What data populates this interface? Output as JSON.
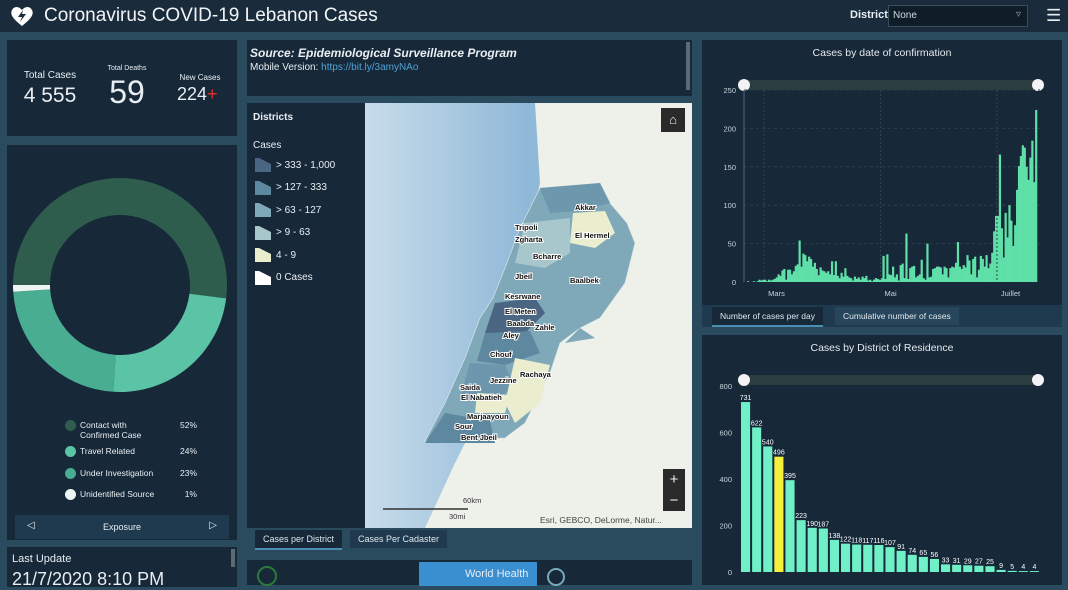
{
  "header": {
    "title": "Coronavirus COVID-19 Lebanon Cases",
    "district_label": "District",
    "district_value": "None",
    "icon": "heart-bolt-icon",
    "menu_icon": "hamburger-icon"
  },
  "stats": {
    "total_cases_label": "Total Cases",
    "total_cases": "4 555",
    "total_deaths_label": "Total Deaths",
    "total_deaths": "59",
    "new_cases_label": "New Cases",
    "new_cases": "224",
    "new_cases_mark": "+"
  },
  "exposure": {
    "tab_label": "Exposure",
    "items": [
      {
        "label": "Contact with Confirmed Case",
        "pct": "52%",
        "value": 52,
        "color": "#2e5c4d"
      },
      {
        "label": "Travel Related",
        "pct": "24%",
        "value": 24,
        "color": "#5bc3a6"
      },
      {
        "label": "Under Investigation",
        "pct": "23%",
        "value": 23,
        "color": "#49ad92"
      },
      {
        "label": "Unidentified Source",
        "pct": "1%",
        "value": 1,
        "color": "#eef6f4"
      }
    ]
  },
  "last_update": {
    "label": "Last Update",
    "value": "21/7/2020 8:10 PM"
  },
  "source": {
    "title": "Source: Epidemiological Surveillance Program",
    "mobile_label": "Mobile Version: ",
    "mobile_link": "https://bit.ly/3amyNAo"
  },
  "map": {
    "legend_title": "Districts",
    "legend_subtitle": "Cases",
    "legend": [
      {
        "label": "> 333 - 1,000",
        "color": "#4a6683"
      },
      {
        "label": "> 127 - 333",
        "color": "#5e87a0"
      },
      {
        "label": "> 63 - 127",
        "color": "#7fa9b8"
      },
      {
        "label": "> 9 - 63",
        "color": "#a8c7cc"
      },
      {
        "label": "4 - 9",
        "color": "#ebedcf"
      },
      {
        "label": "0 Cases",
        "color": "#ffffff"
      }
    ],
    "districts": [
      "Akkar",
      "Tripoli",
      "Zgharta",
      "El Hermel",
      "Bcharre",
      "Jbeil",
      "Baalbek",
      "Kesrwane",
      "El Meten",
      "Baabda",
      "Zahle",
      "Aley",
      "Chouf",
      "Jezzine",
      "Rachaya",
      "Saida",
      "El Nabatieh",
      "Marjaayoun",
      "Sour",
      "Bent Jbeil"
    ],
    "scale_km": "60km",
    "scale_mi": "30mi",
    "attribution": "Esri, GEBCO, DeLorme, Natur...",
    "tabs": [
      "Cases per District",
      "Cases Per Cadaster"
    ],
    "home_icon": "home-icon",
    "zoom_in": "+",
    "zoom_out": "−"
  },
  "footer_logos": {
    "who": "World Health"
  },
  "chart_tabs": [
    "Number of cases per day",
    "Cumulative number of cases"
  ],
  "chart_data": [
    {
      "type": "bar",
      "title": "Cases by  date of confirmation",
      "x_start": "2020-02-21",
      "x_end": "2020-07-21",
      "xticks": [
        "Mars",
        "Mai",
        "Juillet"
      ],
      "ylim": [
        0,
        250
      ],
      "yticks": [
        0,
        50,
        100,
        150,
        200,
        250
      ],
      "color": "#5fe0a8",
      "values": [
        1,
        0,
        0,
        1,
        0,
        1,
        3,
        2,
        3,
        3,
        1,
        3,
        2,
        3,
        4,
        6,
        10,
        8,
        15,
        17,
        3,
        16,
        16,
        10,
        14,
        21,
        23,
        54,
        20,
        37,
        35,
        27,
        33,
        30,
        20,
        25,
        17,
        9,
        19,
        15,
        14,
        12,
        14,
        10,
        27,
        9,
        27,
        8,
        5,
        12,
        7,
        18,
        8,
        6,
        5,
        2,
        7,
        4,
        6,
        3,
        7,
        5,
        8,
        2,
        3,
        1,
        3,
        5,
        4,
        3,
        5,
        34,
        4,
        36,
        10,
        9,
        20,
        6,
        10,
        2,
        22,
        24,
        5,
        63,
        4,
        18,
        20,
        21,
        6,
        8,
        10,
        29,
        5,
        3,
        50,
        6,
        7,
        17,
        18,
        20,
        20,
        19,
        10,
        20,
        18,
        6,
        18,
        20,
        19,
        25,
        52,
        20,
        17,
        22,
        19,
        35,
        28,
        10,
        30,
        33,
        6,
        16,
        34,
        30,
        20,
        35,
        18,
        24,
        38,
        66,
        86,
        86,
        166,
        70,
        32,
        90,
        58,
        100,
        80,
        47,
        74,
        120,
        151,
        164,
        178,
        175,
        150,
        133,
        162,
        184,
        130,
        224
      ]
    },
    {
      "type": "bar",
      "title": "Cases by District of Residence",
      "ylim": [
        0,
        800
      ],
      "yticks": [
        0,
        200,
        400,
        600,
        800
      ],
      "color": "#6ff0c6",
      "highlight_color": "#f5ef3c",
      "highlight_index": 3,
      "values": [
        731,
        622,
        540,
        496,
        395,
        223,
        190,
        187,
        138,
        122,
        118,
        117,
        116,
        107,
        91,
        74,
        65,
        56,
        33,
        31,
        29,
        27,
        25,
        9,
        5,
        4,
        4
      ]
    }
  ]
}
